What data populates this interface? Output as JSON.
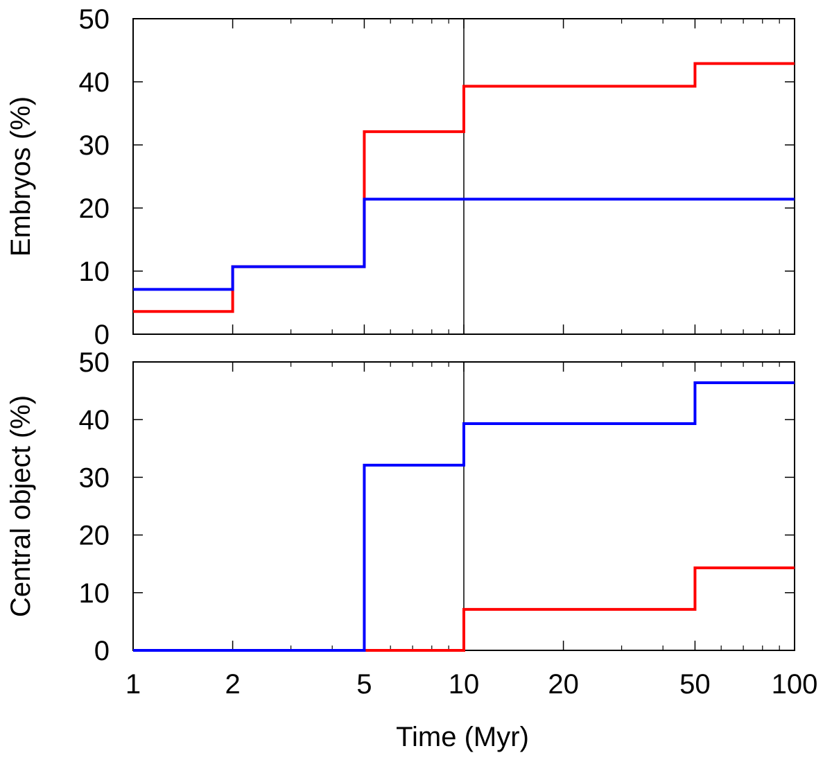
{
  "chart_data": [
    {
      "type": "line",
      "step": "post",
      "xscale": "log",
      "xlim": [
        1,
        100
      ],
      "ylim": [
        0,
        50
      ],
      "xlabel": "",
      "ylabel": "Embryos (%)",
      "xticks": [
        1,
        2,
        5,
        10,
        20,
        50,
        100
      ],
      "xtick_labels_shown": false,
      "yticks": [
        0,
        10,
        20,
        30,
        40,
        50
      ],
      "ytick_labels": [
        "0",
        "10",
        "20",
        "30",
        "40",
        "50"
      ],
      "vertical_line_x": 10,
      "grid": false,
      "legend": "none",
      "series": [
        {
          "color": "#ff0000",
          "x": [
            1,
            2,
            5,
            10,
            50,
            100
          ],
          "values": [
            3.6,
            10.7,
            32.1,
            39.3,
            42.9,
            42.9
          ]
        },
        {
          "color": "#0000ff",
          "x": [
            1,
            2,
            5,
            10,
            50,
            100
          ],
          "values": [
            7.1,
            10.7,
            21.4,
            21.4,
            21.4,
            21.4
          ]
        }
      ]
    },
    {
      "type": "line",
      "step": "post",
      "xscale": "log",
      "xlim": [
        1,
        100
      ],
      "ylim": [
        0,
        50
      ],
      "xlabel": "Time (Myr)",
      "ylabel": "Central object (%)",
      "xticks": [
        1,
        2,
        5,
        10,
        20,
        50,
        100
      ],
      "xtick_labels": [
        "1",
        "2",
        "5",
        "10",
        "20",
        "50",
        "100"
      ],
      "yticks": [
        0,
        10,
        20,
        30,
        40,
        50
      ],
      "ytick_labels": [
        "0",
        "10",
        "20",
        "30",
        "40",
        "50"
      ],
      "vertical_line_x": 10,
      "grid": false,
      "legend": "none",
      "series": [
        {
          "color": "#ff0000",
          "x": [
            1,
            2,
            5,
            10,
            50,
            100
          ],
          "values": [
            0,
            0,
            0,
            7.1,
            14.3,
            14.3
          ]
        },
        {
          "color": "#0000ff",
          "x": [
            1,
            2,
            5,
            10,
            50,
            100
          ],
          "values": [
            0,
            0,
            32.1,
            39.3,
            46.4,
            46.4
          ]
        }
      ]
    }
  ]
}
